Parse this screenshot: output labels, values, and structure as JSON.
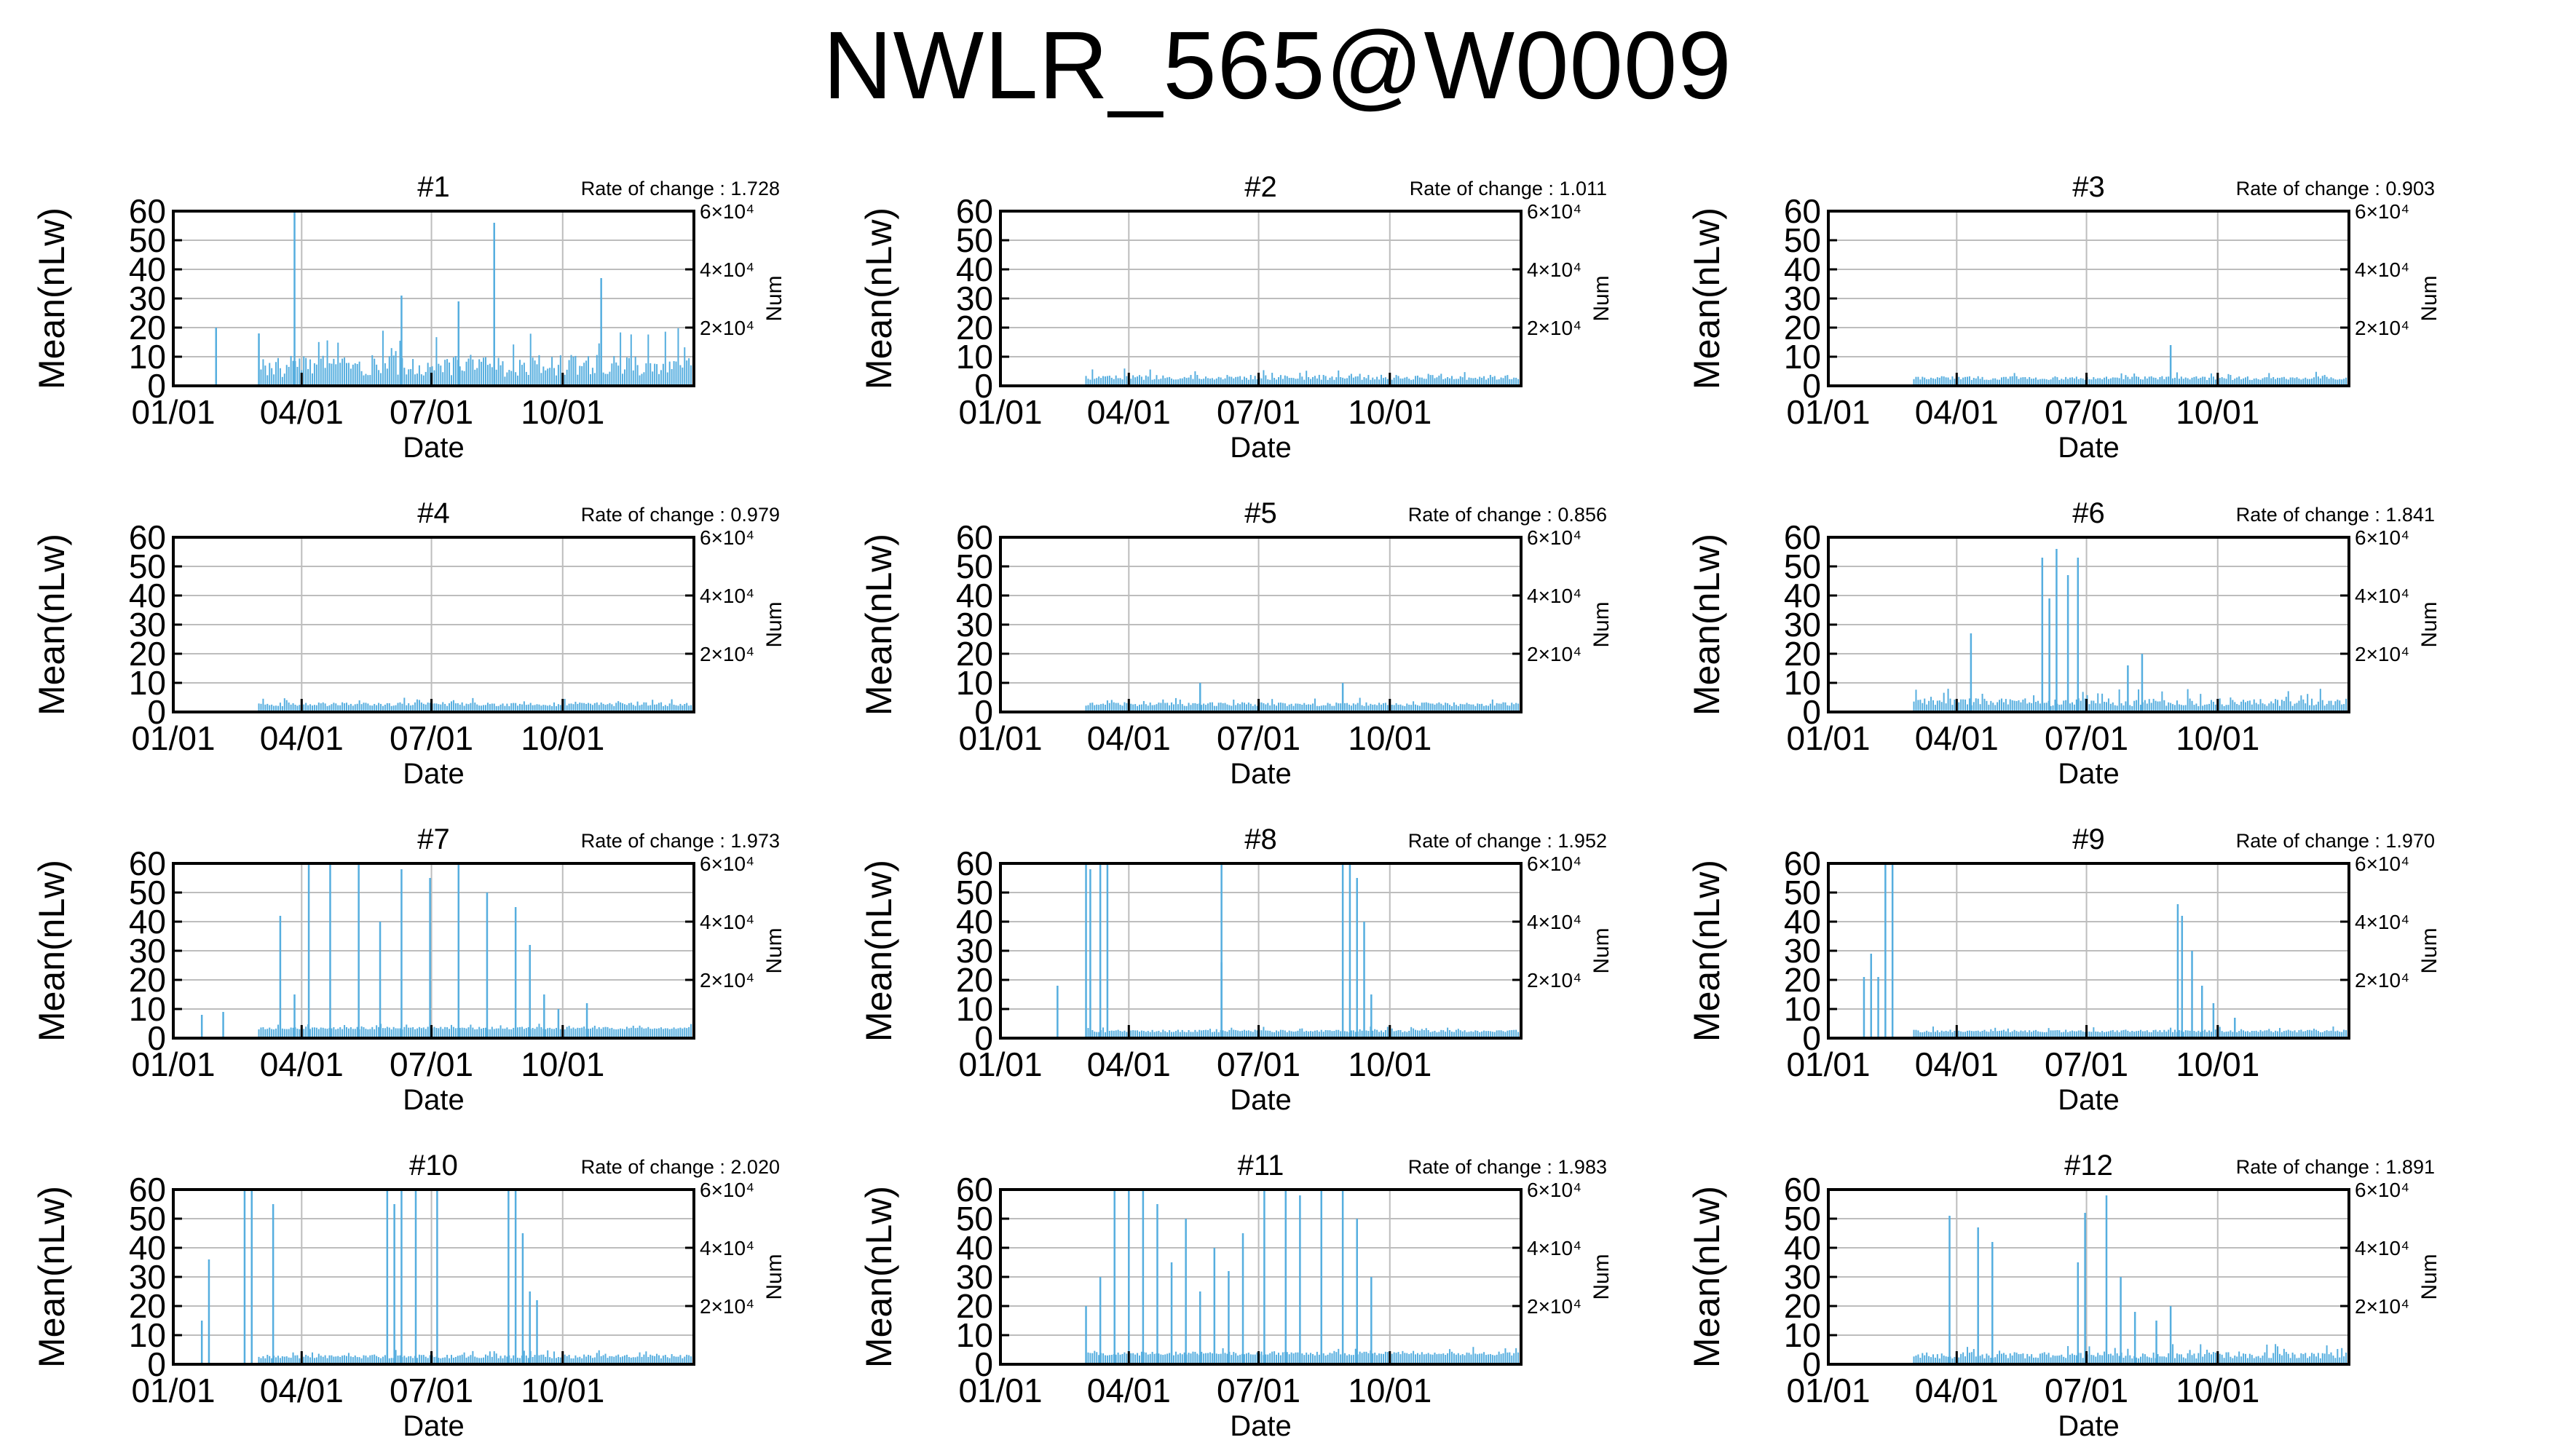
{
  "title": "NWLR_565@W0009",
  "colors": {
    "bar": "#56aedf",
    "axis": "#000000",
    "grid": "#bdbdbd",
    "background": "#ffffff"
  },
  "axes": {
    "ylabel": "Mean(nLw)",
    "y2label": "Num",
    "xlabel": "Date",
    "yticks": [
      "0",
      "10",
      "20",
      "30",
      "40",
      "50",
      "60"
    ],
    "ylim": [
      0,
      60
    ],
    "xticks": [
      "01/01",
      "04/01",
      "07/01",
      "10/01"
    ],
    "xtick_days": [
      0,
      90,
      181,
      273
    ],
    "xlim": [
      0,
      365
    ],
    "y2ticks": [
      "2×10⁴",
      "4×10⁴",
      "6×10⁴"
    ],
    "grid": true,
    "rate_prefix": "Rate of change : "
  },
  "chart_data": [
    {
      "type": "bar",
      "title": "#1",
      "rate": "1.728",
      "noise": [
        3,
        20
      ],
      "spikes": [
        [
          85,
          60
        ],
        [
          225,
          56
        ],
        [
          160,
          31
        ],
        [
          200,
          29
        ],
        [
          300,
          37
        ],
        [
          30,
          20
        ],
        [
          60,
          18
        ]
      ]
    },
    {
      "type": "bar",
      "title": "#2",
      "rate": "1.011",
      "noise": [
        2,
        6
      ],
      "spikes": []
    },
    {
      "type": "bar",
      "title": "#3",
      "rate": "0.903",
      "noise": [
        2,
        5
      ],
      "spikes": [
        [
          240,
          14
        ]
      ]
    },
    {
      "type": "bar",
      "title": "#4",
      "rate": "0.979",
      "noise": [
        2,
        5
      ],
      "spikes": []
    },
    {
      "type": "bar",
      "title": "#5",
      "rate": "0.856",
      "noise": [
        2,
        5
      ],
      "spikes": [
        [
          140,
          10
        ],
        [
          240,
          10
        ]
      ]
    },
    {
      "type": "bar",
      "title": "#6",
      "rate": "1.841",
      "noise": [
        2,
        8
      ],
      "spikes": [
        [
          150,
          53
        ],
        [
          160,
          56
        ],
        [
          175,
          53
        ],
        [
          168,
          47
        ],
        [
          155,
          39
        ],
        [
          100,
          27
        ],
        [
          220,
          20
        ],
        [
          210,
          16
        ]
      ]
    },
    {
      "type": "bar",
      "title": "#7",
      "rate": "1.973",
      "noise": [
        3,
        5
      ],
      "spikes": [
        [
          95,
          60
        ],
        [
          110,
          60
        ],
        [
          130,
          60
        ],
        [
          160,
          58
        ],
        [
          180,
          55
        ],
        [
          200,
          60
        ],
        [
          220,
          50
        ],
        [
          240,
          45
        ],
        [
          75,
          42
        ],
        [
          145,
          40
        ],
        [
          250,
          32
        ],
        [
          85,
          15
        ],
        [
          260,
          15
        ],
        [
          20,
          8
        ],
        [
          35,
          9
        ],
        [
          270,
          10
        ],
        [
          290,
          12
        ]
      ]
    },
    {
      "type": "bar",
      "title": "#8",
      "rate": "1.952",
      "noise": [
        2,
        4
      ],
      "spikes": [
        [
          60,
          60
        ],
        [
          63,
          58
        ],
        [
          70,
          60
        ],
        [
          75,
          60
        ],
        [
          155,
          60
        ],
        [
          155,
          26
        ],
        [
          240,
          60
        ],
        [
          245,
          60
        ],
        [
          250,
          55
        ],
        [
          255,
          40
        ],
        [
          260,
          15
        ],
        [
          40,
          18
        ]
      ]
    },
    {
      "type": "bar",
      "title": "#9",
      "rate": "1.970",
      "noise": [
        2,
        4
      ],
      "spikes": [
        [
          40,
          60
        ],
        [
          45,
          60
        ],
        [
          25,
          21
        ],
        [
          30,
          29
        ],
        [
          35,
          21
        ],
        [
          245,
          46
        ],
        [
          248,
          42
        ],
        [
          255,
          30
        ],
        [
          262,
          18
        ],
        [
          270,
          12
        ],
        [
          285,
          7
        ]
      ]
    },
    {
      "type": "bar",
      "title": "#10",
      "rate": "2.020",
      "noise": [
        2,
        5
      ],
      "spikes": [
        [
          50,
          60
        ],
        [
          55,
          60
        ],
        [
          70,
          55
        ],
        [
          150,
          60
        ],
        [
          155,
          55
        ],
        [
          160,
          60
        ],
        [
          170,
          60
        ],
        [
          185,
          60
        ],
        [
          235,
          60
        ],
        [
          240,
          60
        ],
        [
          245,
          45
        ],
        [
          250,
          25
        ],
        [
          255,
          22
        ],
        [
          20,
          15
        ],
        [
          25,
          36
        ]
      ]
    },
    {
      "type": "bar",
      "title": "#11",
      "rate": "1.983",
      "noise": [
        3,
        6
      ],
      "spikes": [
        [
          80,
          60
        ],
        [
          90,
          60
        ],
        [
          100,
          60
        ],
        [
          110,
          55
        ],
        [
          130,
          50
        ],
        [
          150,
          40
        ],
        [
          170,
          45
        ],
        [
          185,
          60
        ],
        [
          200,
          60
        ],
        [
          210,
          58
        ],
        [
          225,
          60
        ],
        [
          240,
          60
        ],
        [
          250,
          50
        ],
        [
          60,
          20
        ],
        [
          70,
          30
        ],
        [
          120,
          35
        ],
        [
          140,
          25
        ],
        [
          160,
          32
        ],
        [
          260,
          30
        ]
      ]
    },
    {
      "type": "bar",
      "title": "#12",
      "rate": "1.891",
      "noise": [
        2,
        7
      ],
      "spikes": [
        [
          85,
          51
        ],
        [
          105,
          47
        ],
        [
          115,
          42
        ],
        [
          180,
          52
        ],
        [
          195,
          58
        ],
        [
          175,
          35
        ],
        [
          205,
          30
        ],
        [
          215,
          18
        ],
        [
          230,
          15
        ],
        [
          240,
          20
        ]
      ]
    }
  ]
}
